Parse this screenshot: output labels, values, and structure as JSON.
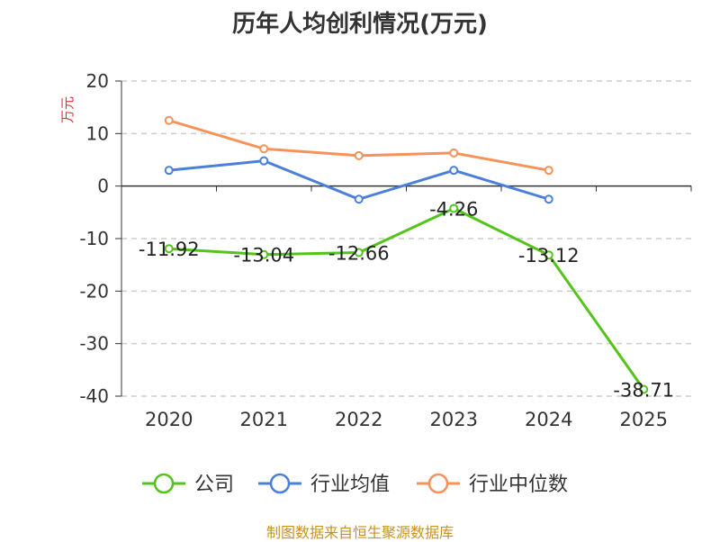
{
  "colors": {
    "company": "#52c41a",
    "industry_avg": "#4a80d9",
    "industry_median": "#f5925a",
    "axis_unit": "#d9343d",
    "source": "#c8911b"
  },
  "source_note": "制图数据来自恒生聚源数据库",
  "chart_data": {
    "type": "line",
    "title": "历年人均创利情况(万元)",
    "ylabel": "万元",
    "xlabel": "",
    "ylim": [
      -40,
      20
    ],
    "yticks": [
      20,
      10,
      0,
      -10,
      -20,
      -30,
      -40
    ],
    "categories": [
      "2020",
      "2021",
      "2022",
      "2023",
      "2024",
      "2025"
    ],
    "grid": true,
    "legend_position": "bottom",
    "series": [
      {
        "name": "公司",
        "color_key": "company",
        "values": [
          -11.92,
          -13.04,
          -12.66,
          -4.26,
          -13.12,
          -38.71
        ],
        "labels": [
          "-11.92",
          "-13.04",
          "-12.66",
          "-4.26",
          "-13.12",
          "-38.71"
        ]
      },
      {
        "name": "行业均值",
        "color_key": "industry_avg",
        "values": [
          3.0,
          4.8,
          -2.5,
          3.0,
          -2.5,
          null
        ]
      },
      {
        "name": "行业中位数",
        "color_key": "industry_median",
        "values": [
          12.5,
          7.1,
          5.8,
          6.3,
          3.0,
          null
        ]
      }
    ]
  }
}
